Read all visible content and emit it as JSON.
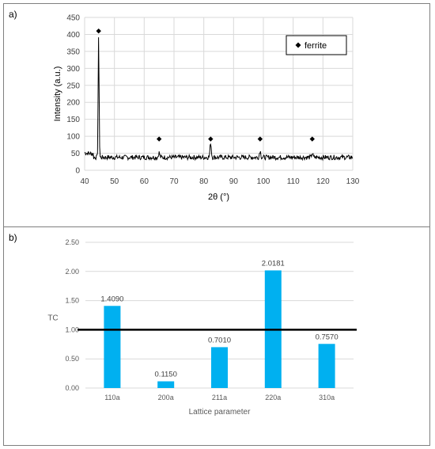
{
  "chart_data": [
    {
      "type": "line",
      "panel_label": "a)",
      "xlabel": "2θ (°)",
      "ylabel": "Intensity (a.u.)",
      "xlim": [
        40,
        130
      ],
      "ylim": [
        0,
        450
      ],
      "x_ticks": [
        40,
        50,
        60,
        70,
        80,
        90,
        100,
        110,
        120,
        130
      ],
      "y_ticks": [
        0,
        50,
        100,
        150,
        200,
        250,
        300,
        350,
        400,
        450
      ],
      "grid": true,
      "legend_position": "top-right",
      "series": [
        {
          "name": "ferrite",
          "marker": "diamond",
          "markers": [
            {
              "x": 44.7,
              "y": 410
            },
            {
              "x": 65.0,
              "y": 92
            },
            {
              "x": 82.3,
              "y": 92
            },
            {
              "x": 98.9,
              "y": 92
            },
            {
              "x": 116.4,
              "y": 92
            }
          ]
        }
      ],
      "pattern": {
        "baseline": 38,
        "peaks": [
          {
            "x": 44.7,
            "y": 388
          },
          {
            "x": 65.0,
            "y": 52
          },
          {
            "x": 82.3,
            "y": 82
          },
          {
            "x": 98.9,
            "y": 58
          },
          {
            "x": 116.4,
            "y": 50
          }
        ]
      }
    },
    {
      "type": "bar",
      "panel_label": "b)",
      "xlabel": "Lattice parameter",
      "ylabel": "TC",
      "categories": [
        "110a",
        "200a",
        "211a",
        "220a",
        "310a"
      ],
      "values": [
        1.409,
        0.115,
        0.701,
        2.0181,
        0.757
      ],
      "value_labels": [
        "1.4090",
        "0.1150",
        "0.7010",
        "2.0181",
        "0.7570"
      ],
      "ylim": [
        0,
        2.5
      ],
      "y_ticks": [
        "0.00",
        "0.50",
        "1.00",
        "1.50",
        "2.00",
        "2.50"
      ],
      "reference_line": 1.0,
      "grid": true,
      "bar_color": "#00b0f0"
    }
  ]
}
